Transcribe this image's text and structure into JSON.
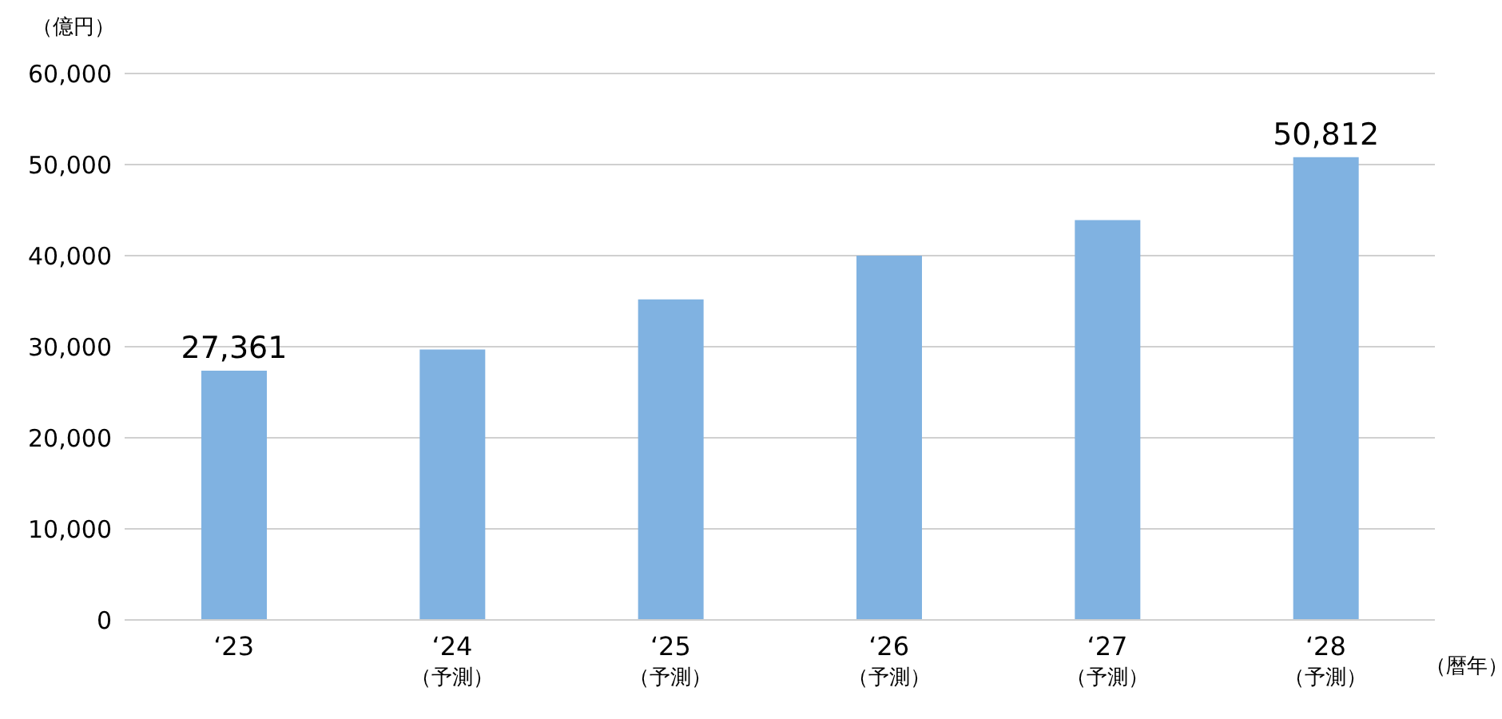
{
  "chart_data": {
    "type": "bar",
    "ylabel": "（億円）",
    "xlabel": "（暦年）",
    "categories": [
      "‘23",
      "‘24\n（予測）",
      "‘25\n（予測）",
      "‘26\n（予測）",
      "‘27\n（予測）",
      "‘28\n（予測）"
    ],
    "values": [
      27361,
      29700,
      35200,
      40000,
      43900,
      50812
    ],
    "value_labels": [
      "27,361",
      null,
      null,
      null,
      null,
      "50,812"
    ],
    "color": "#80b2e1",
    "ylim": [
      0,
      60000
    ],
    "yticks": [
      0,
      {
        "value": 10000,
        "label": "10,000"
      },
      {
        "value": 20000,
        "label": "20,000"
      },
      {
        "value": 30000,
        "label": "30,000"
      },
      {
        "value": 40000,
        "label": "40,000"
      },
      {
        "value": 50000,
        "label": "50,000"
      },
      {
        "value": 60000,
        "label": "60,000"
      }
    ],
    "grid": "y",
    "legend": false
  }
}
